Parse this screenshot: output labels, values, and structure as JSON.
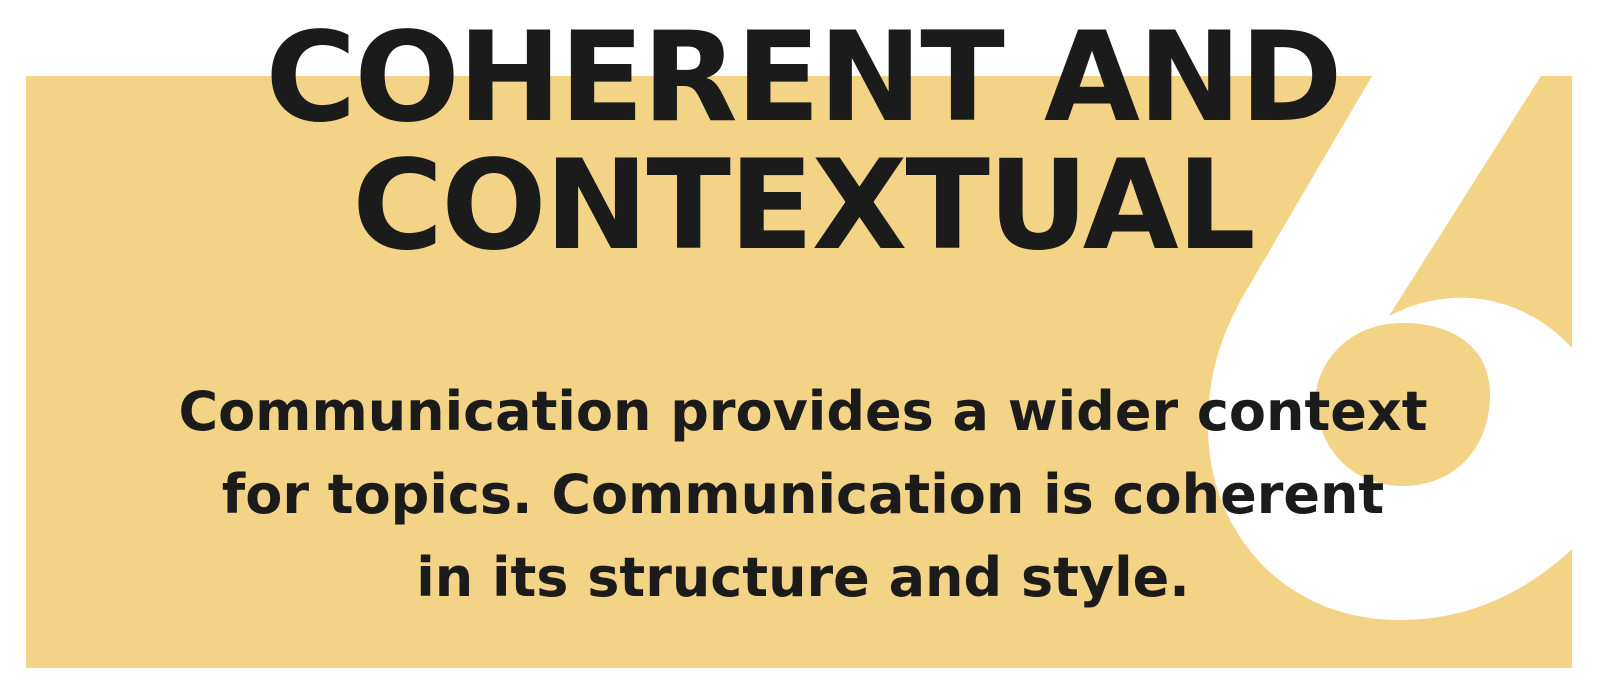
{
  "heading": {
    "line1": "COHERENT AND",
    "line2": "CONTEXTUAL"
  },
  "body": {
    "line1": "Communication provides a wider context",
    "line2": "for topics. Communication is coherent",
    "line3": "in its structure and style."
  },
  "badge": {
    "numeral": "6"
  },
  "colors": {
    "panel": "#f3d386",
    "text": "#1b1b1b",
    "numeral": "#ffffff",
    "background": "#ffffff"
  }
}
